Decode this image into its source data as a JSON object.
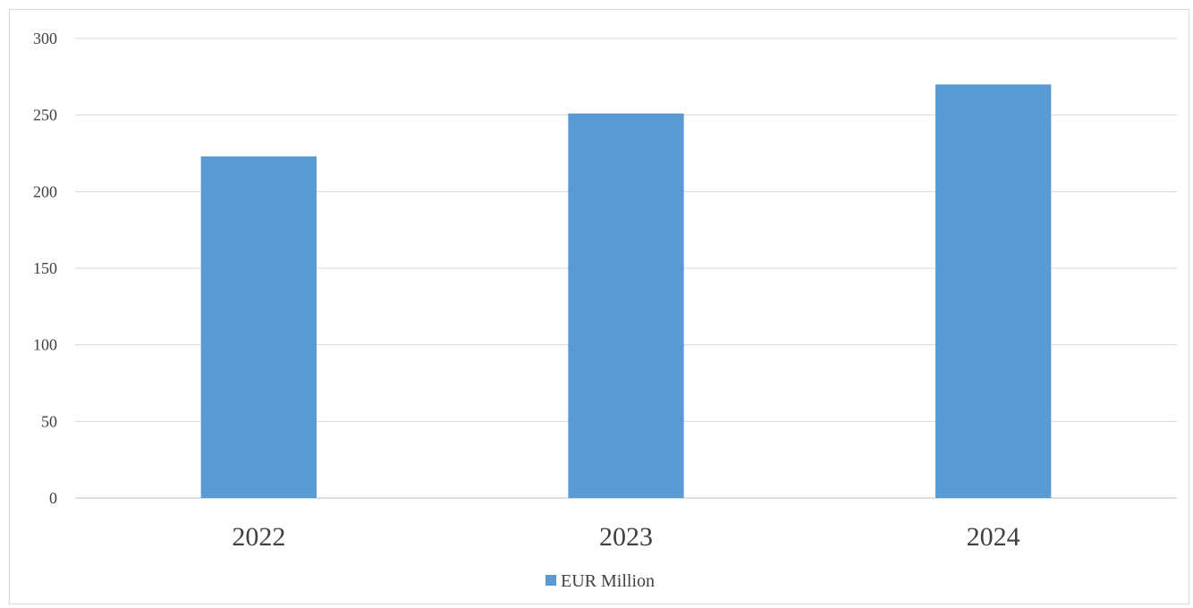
{
  "chart_data": {
    "type": "bar",
    "categories": [
      "2022",
      "2023",
      "2024"
    ],
    "series": [
      {
        "name": "EUR Million",
        "values": [
          223,
          251,
          270
        ],
        "color": "#5b9bd5"
      }
    ],
    "ylim": [
      0,
      300
    ],
    "yticks": [
      0,
      50,
      100,
      150,
      200,
      250,
      300
    ],
    "grid": true,
    "legend": "bottom-center",
    "gridColor": "#d9d9d9",
    "axisColor": "#bfbfbf"
  }
}
